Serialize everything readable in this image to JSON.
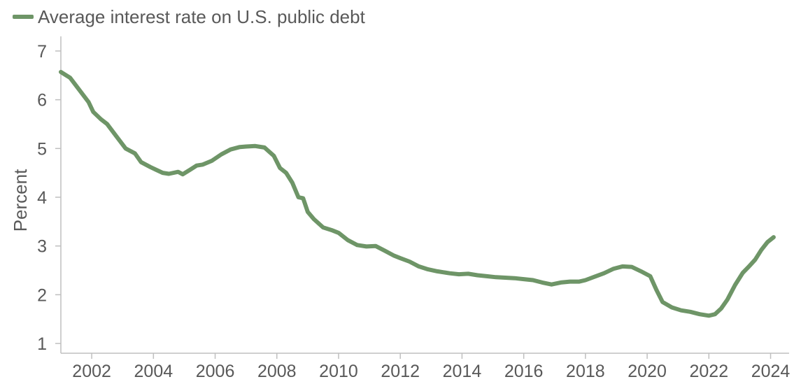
{
  "colors": {
    "series": "#6e9567",
    "axis": "#bfbfbf",
    "text": "#595959"
  },
  "chart_data": {
    "type": "line",
    "title": "",
    "xlabel": "",
    "ylabel": "Percent",
    "xlim": [
      2001.0,
      2024.6
    ],
    "ylim": [
      0.8,
      7.3
    ],
    "x_ticks": [
      2002,
      2004,
      2006,
      2008,
      2010,
      2012,
      2014,
      2016,
      2018,
      2020,
      2022,
      2024
    ],
    "y_ticks": [
      1,
      2,
      3,
      4,
      5,
      6,
      7
    ],
    "grid": false,
    "legend_position": "top-left",
    "series": [
      {
        "name": "Average interest rate on U.S. public debt",
        "x": [
          2001.0,
          2001.3,
          2001.6,
          2001.9,
          2002.05,
          2002.3,
          2002.5,
          2002.8,
          2003.1,
          2003.4,
          2003.6,
          2003.9,
          2004.1,
          2004.3,
          2004.5,
          2004.8,
          2004.95,
          2005.2,
          2005.4,
          2005.6,
          2005.9,
          2006.2,
          2006.5,
          2006.8,
          2007.0,
          2007.3,
          2007.6,
          2007.9,
          2008.1,
          2008.3,
          2008.5,
          2008.7,
          2008.85,
          2009.0,
          2009.2,
          2009.5,
          2009.8,
          2010.0,
          2010.3,
          2010.6,
          2010.9,
          2011.2,
          2011.5,
          2011.8,
          2012.0,
          2012.3,
          2012.6,
          2012.9,
          2013.2,
          2013.6,
          2013.9,
          2014.2,
          2014.5,
          2014.8,
          2015.1,
          2015.4,
          2015.7,
          2016.0,
          2016.3,
          2016.6,
          2016.9,
          2017.2,
          2017.5,
          2017.8,
          2018.0,
          2018.3,
          2018.6,
          2018.9,
          2019.2,
          2019.5,
          2019.8,
          2020.1,
          2020.3,
          2020.5,
          2020.8,
          2021.1,
          2021.4,
          2021.7,
          2022.0,
          2022.2,
          2022.4,
          2022.6,
          2022.85,
          2023.1,
          2023.3,
          2023.5,
          2023.7,
          2023.9,
          2024.1
        ],
        "y": [
          6.57,
          6.45,
          6.2,
          5.95,
          5.75,
          5.6,
          5.5,
          5.25,
          5.0,
          4.9,
          4.72,
          4.62,
          4.56,
          4.5,
          4.48,
          4.52,
          4.47,
          4.57,
          4.65,
          4.67,
          4.75,
          4.88,
          4.98,
          5.03,
          5.04,
          5.05,
          5.02,
          4.85,
          4.6,
          4.5,
          4.3,
          4.0,
          3.98,
          3.7,
          3.55,
          3.38,
          3.32,
          3.27,
          3.12,
          3.02,
          2.99,
          3.0,
          2.9,
          2.8,
          2.75,
          2.68,
          2.58,
          2.52,
          2.48,
          2.44,
          2.42,
          2.43,
          2.4,
          2.38,
          2.36,
          2.35,
          2.34,
          2.32,
          2.3,
          2.25,
          2.21,
          2.25,
          2.27,
          2.27,
          2.3,
          2.37,
          2.44,
          2.53,
          2.58,
          2.57,
          2.48,
          2.38,
          2.1,
          1.85,
          1.74,
          1.68,
          1.65,
          1.6,
          1.57,
          1.6,
          1.72,
          1.9,
          2.2,
          2.45,
          2.58,
          2.72,
          2.92,
          3.08,
          3.18
        ]
      }
    ]
  }
}
